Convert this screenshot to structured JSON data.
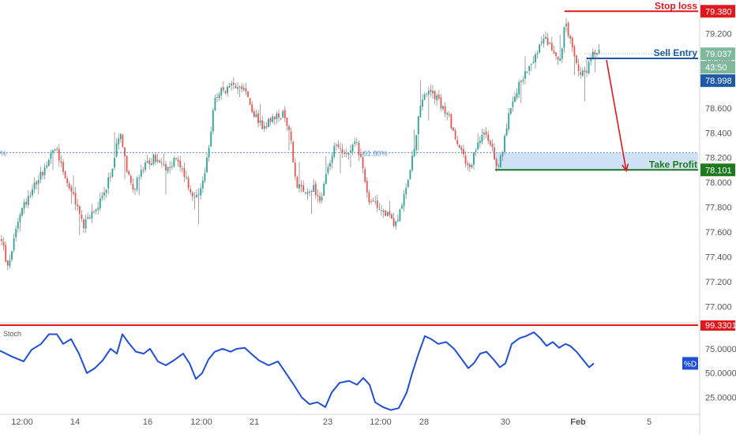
{
  "chart_data": [
    {
      "type": "candlestick",
      "title": "",
      "xlabel": "",
      "ylabel": "",
      "ylim": [
        76.9,
        79.42
      ],
      "y_ticks": [
        "79.200",
        "79.000",
        "78.800",
        "78.600",
        "78.400",
        "78.200",
        "78.000",
        "77.800",
        "77.600",
        "77.400",
        "77.200",
        "77.000"
      ],
      "x_ticks": [
        "12:00",
        "14",
        "16",
        "12:00",
        "21",
        "23",
        "12:00",
        "28",
        "30",
        "Feb",
        "5"
      ],
      "grid": false,
      "colors": {
        "up": "#26a69a",
        "down": "#ef5350",
        "wick": "#8c8c8c"
      },
      "close_path": [
        [
          0,
          77.6
        ],
        [
          10,
          77.3
        ],
        [
          22,
          77.7
        ],
        [
          40,
          77.95
        ],
        [
          55,
          78.1
        ],
        [
          70,
          78.3
        ],
        [
          85,
          78.0
        ],
        [
          98,
          77.8
        ],
        [
          105,
          77.65
        ],
        [
          118,
          77.75
        ],
        [
          130,
          77.9
        ],
        [
          142,
          78.1
        ],
        [
          152,
          78.45
        ],
        [
          160,
          78.1
        ],
        [
          170,
          77.95
        ],
        [
          180,
          78.1
        ],
        [
          195,
          78.2
        ],
        [
          210,
          78.1
        ],
        [
          225,
          78.2
        ],
        [
          240,
          77.95
        ],
        [
          248,
          77.85
        ],
        [
          258,
          78.0
        ],
        [
          265,
          78.3
        ],
        [
          272,
          78.7
        ],
        [
          285,
          78.75
        ],
        [
          300,
          78.8
        ],
        [
          310,
          78.75
        ],
        [
          322,
          78.55
        ],
        [
          332,
          78.45
        ],
        [
          345,
          78.5
        ],
        [
          358,
          78.55
        ],
        [
          368,
          78.35
        ],
        [
          375,
          78.0
        ],
        [
          385,
          77.9
        ],
        [
          398,
          77.95
        ],
        [
          405,
          77.85
        ],
        [
          413,
          78.05
        ],
        [
          425,
          78.3
        ],
        [
          440,
          78.25
        ],
        [
          450,
          78.35
        ],
        [
          460,
          78.1
        ],
        [
          468,
          77.85
        ],
        [
          480,
          77.8
        ],
        [
          490,
          77.75
        ],
        [
          500,
          77.65
        ],
        [
          510,
          77.85
        ],
        [
          520,
          78.1
        ],
        [
          528,
          78.45
        ],
        [
          535,
          78.7
        ],
        [
          545,
          78.75
        ],
        [
          555,
          78.65
        ],
        [
          568,
          78.55
        ],
        [
          578,
          78.3
        ],
        [
          588,
          78.2
        ],
        [
          595,
          78.1
        ],
        [
          603,
          78.3
        ],
        [
          612,
          78.4
        ],
        [
          622,
          78.3
        ],
        [
          630,
          78.1
        ],
        [
          638,
          78.3
        ],
        [
          645,
          78.6
        ],
        [
          655,
          78.75
        ],
        [
          665,
          78.9
        ],
        [
          675,
          78.95
        ],
        [
          683,
          79.1
        ],
        [
          693,
          79.15
        ],
        [
          700,
          79.05
        ],
        [
          710,
          79.0
        ],
        [
          716,
          79.3
        ],
        [
          722,
          79.15
        ],
        [
          728,
          79.0
        ],
        [
          735,
          78.85
        ],
        [
          742,
          78.9
        ],
        [
          750,
          79.05
        ]
      ],
      "annotations": [
        {
          "text": "Stop loss",
          "color": "#e0181e",
          "level": 79.38
        },
        {
          "text": "Sell Entry",
          "color": "#1e5aa6",
          "level": 79.0
        },
        {
          "text": "Take Profit",
          "color": "#1e7a1e",
          "level": 78.101
        },
        {
          "text": "61.80%",
          "color": "#5a8de0",
          "level": 78.24
        }
      ],
      "price_labels": [
        {
          "text": "79.380",
          "bg": "#e0181e",
          "level": 79.38
        },
        {
          "text": "79.037",
          "bg": "#7fb89a",
          "level": 79.037
        },
        {
          "text": "43:50",
          "bg": "#7fb89a",
          "level": 78.93
        },
        {
          "text": "78.998",
          "bg": "#1e5aa6",
          "level": 78.998
        },
        {
          "text": "78.101",
          "bg": "#1e7a1e",
          "level": 78.101
        }
      ],
      "left_edge_text": "%"
    },
    {
      "type": "line",
      "title": "Stoch",
      "ylim": [
        10,
        99.3301
      ],
      "y_ticks": [
        "75.0000",
        "50.0000",
        "25.0000"
      ],
      "upper_label": "99.3301",
      "series": [
        {
          "name": "%D",
          "color": "#1e4fd6",
          "points": [
            [
              0,
              73
            ],
            [
              15,
              67
            ],
            [
              30,
              62
            ],
            [
              40,
              74
            ],
            [
              52,
              80
            ],
            [
              62,
              90
            ],
            [
              72,
              90
            ],
            [
              80,
              80
            ],
            [
              90,
              85
            ],
            [
              100,
              70
            ],
            [
              110,
              50
            ],
            [
              120,
              55
            ],
            [
              130,
              63
            ],
            [
              140,
              75
            ],
            [
              148,
              70
            ],
            [
              155,
              90
            ],
            [
              162,
              82
            ],
            [
              172,
              72
            ],
            [
              182,
              70
            ],
            [
              190,
              75
            ],
            [
              200,
              62
            ],
            [
              210,
              58
            ],
            [
              220,
              63
            ],
            [
              232,
              70
            ],
            [
              240,
              60
            ],
            [
              248,
              44
            ],
            [
              256,
              50
            ],
            [
              264,
              64
            ],
            [
              272,
              72
            ],
            [
              282,
              75
            ],
            [
              292,
              72
            ],
            [
              300,
              75
            ],
            [
              310,
              76
            ],
            [
              318,
              70
            ],
            [
              328,
              63
            ],
            [
              340,
              58
            ],
            [
              352,
              62
            ],
            [
              362,
              50
            ],
            [
              372,
              38
            ],
            [
              382,
              25
            ],
            [
              392,
              18
            ],
            [
              402,
              20
            ],
            [
              412,
              15
            ],
            [
              420,
              30
            ],
            [
              430,
              40
            ],
            [
              442,
              42
            ],
            [
              452,
              38
            ],
            [
              460,
              45
            ],
            [
              468,
              38
            ],
            [
              475,
              20
            ],
            [
              485,
              15
            ],
            [
              495,
              12
            ],
            [
              505,
              14
            ],
            [
              515,
              30
            ],
            [
              522,
              50
            ],
            [
              530,
              70
            ],
            [
              538,
              88
            ],
            [
              546,
              85
            ],
            [
              555,
              80
            ],
            [
              565,
              82
            ],
            [
              575,
              75
            ],
            [
              585,
              64
            ],
            [
              593,
              55
            ],
            [
              600,
              60
            ],
            [
              608,
              70
            ],
            [
              616,
              72
            ],
            [
              625,
              64
            ],
            [
              633,
              56
            ],
            [
              640,
              60
            ],
            [
              648,
              80
            ],
            [
              658,
              86
            ],
            [
              666,
              88
            ],
            [
              676,
              92
            ],
            [
              684,
              86
            ],
            [
              692,
              78
            ],
            [
              700,
              82
            ],
            [
              708,
              76
            ],
            [
              716,
              80
            ],
            [
              722,
              78
            ],
            [
              730,
              72
            ],
            [
              738,
              64
            ],
            [
              746,
              56
            ],
            [
              752,
              60
            ]
          ]
        }
      ]
    }
  ]
}
